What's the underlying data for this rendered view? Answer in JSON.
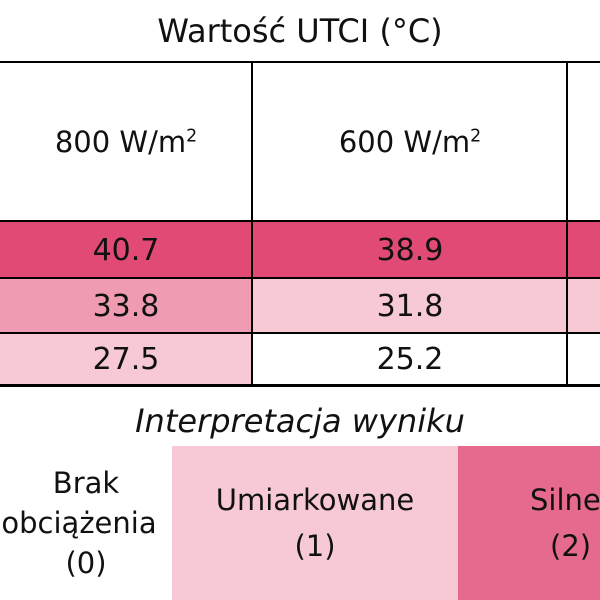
{
  "table": {
    "title": "Wartość UTCI (°C)",
    "columns": [
      {
        "value": "800 W/m",
        "sup": "2"
      },
      {
        "value": "600 W/m",
        "sup": "2"
      }
    ],
    "rows": [
      {
        "cells": [
          "40.7",
          "38.9"
        ],
        "colors": [
          "#e04a75",
          "#e04a75"
        ],
        "edge_color": "#e04a75"
      },
      {
        "cells": [
          "33.8",
          "31.8"
        ],
        "colors": [
          "#ef9cb3",
          "#f6c9d5"
        ],
        "edge_color": "#f6c9d5"
      },
      {
        "cells": [
          "27.5",
          "25.2"
        ],
        "colors": [
          "#f6c9d5",
          "#ffffff"
        ],
        "edge_color": "#ffffff"
      }
    ]
  },
  "interpretation": {
    "title": "Interpretacja wyniku",
    "categories": [
      {
        "line1": "Brak",
        "line2": "obciążenia",
        "code": "(0)",
        "color": "#ffffff"
      },
      {
        "line1": "Umiarkowane",
        "line2": "",
        "code": "(1)",
        "color": "#f6c9d5"
      },
      {
        "line1": "Silne",
        "line2": "",
        "code": "(2)",
        "color": "#e56a8e"
      }
    ]
  }
}
